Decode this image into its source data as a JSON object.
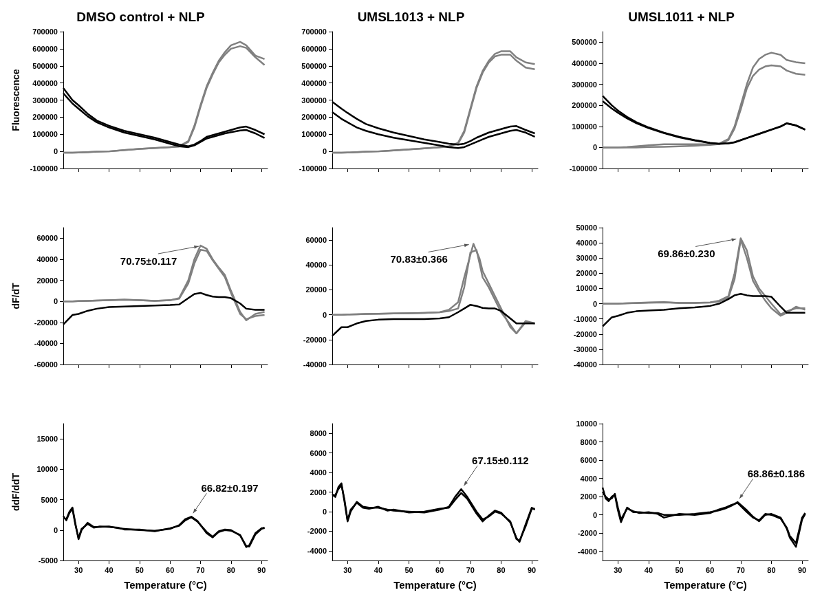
{
  "chart_data": [
    {
      "type": "line",
      "title": "DMSO control + NLP",
      "ylabel": "Fluorescence",
      "xlim": [
        25,
        92
      ],
      "xticks": [
        30,
        40,
        50,
        60,
        70,
        80,
        90
      ],
      "ylim": [
        -100000,
        700000
      ],
      "yticks": [
        -100000,
        0,
        100000,
        200000,
        300000,
        400000,
        500000,
        600000,
        700000
      ],
      "tick_labels": "y",
      "x": [
        25,
        28,
        30,
        33,
        36,
        40,
        45,
        50,
        55,
        60,
        63,
        66,
        68,
        70,
        72,
        74,
        76,
        78,
        80,
        83,
        85,
        88,
        91
      ],
      "series": [
        {
          "color": "#808080",
          "values": [
            -8000,
            -8000,
            -7000,
            -5000,
            -2000,
            0,
            8000,
            15000,
            20000,
            25000,
            30000,
            60000,
            150000,
            270000,
            380000,
            460000,
            530000,
            580000,
            620000,
            640000,
            620000,
            560000,
            540000
          ]
        },
        {
          "color": "#808080",
          "values": [
            -8000,
            -8000,
            -7000,
            -5000,
            -2000,
            0,
            8000,
            15000,
            20000,
            25000,
            28000,
            55000,
            140000,
            260000,
            370000,
            450000,
            520000,
            565000,
            600000,
            615000,
            605000,
            550000,
            505000
          ]
        },
        {
          "color": "#000000",
          "values": [
            370000,
            300000,
            270000,
            220000,
            180000,
            150000,
            120000,
            100000,
            80000,
            55000,
            40000,
            30000,
            40000,
            60000,
            85000,
            95000,
            105000,
            115000,
            125000,
            140000,
            145000,
            125000,
            100000
          ]
        },
        {
          "color": "#000000",
          "values": [
            340000,
            280000,
            250000,
            205000,
            170000,
            140000,
            110000,
            90000,
            70000,
            45000,
            30000,
            25000,
            35000,
            55000,
            75000,
            85000,
            95000,
            105000,
            112000,
            122000,
            125000,
            105000,
            78000
          ]
        }
      ]
    },
    {
      "type": "line",
      "title": "UMSL1013 + NLP",
      "xlim": [
        25,
        92
      ],
      "xticks": [
        30,
        40,
        50,
        60,
        70,
        80,
        90
      ],
      "ylim": [
        -100000,
        700000
      ],
      "yticks": [
        -100000,
        0,
        100000,
        200000,
        300000,
        400000,
        500000,
        600000,
        700000
      ],
      "tick_labels": "y",
      "x": [
        25,
        28,
        30,
        33,
        36,
        40,
        45,
        50,
        55,
        60,
        63,
        66,
        68,
        70,
        72,
        74,
        76,
        78,
        80,
        83,
        85,
        88,
        91
      ],
      "series": [
        {
          "color": "#808080",
          "values": [
            -8000,
            -8000,
            -7000,
            -5000,
            -2000,
            0,
            6000,
            12000,
            18000,
            25000,
            30000,
            50000,
            120000,
            250000,
            380000,
            470000,
            530000,
            570000,
            585000,
            585000,
            550000,
            520000,
            510000
          ]
        },
        {
          "color": "#808080",
          "values": [
            -8000,
            -8000,
            -7000,
            -5000,
            -2000,
            0,
            6000,
            12000,
            18000,
            24000,
            28000,
            45000,
            110000,
            240000,
            370000,
            460000,
            520000,
            555000,
            565000,
            565000,
            530000,
            490000,
            480000
          ]
        },
        {
          "color": "#000000",
          "values": [
            290000,
            250000,
            225000,
            190000,
            160000,
            135000,
            110000,
            90000,
            70000,
            55000,
            45000,
            40000,
            45000,
            60000,
            80000,
            95000,
            110000,
            120000,
            130000,
            145000,
            148000,
            125000,
            105000
          ]
        },
        {
          "color": "#000000",
          "values": [
            230000,
            190000,
            170000,
            140000,
            120000,
            100000,
            80000,
            65000,
            50000,
            35000,
            25000,
            20000,
            25000,
            40000,
            55000,
            70000,
            85000,
            95000,
            105000,
            120000,
            125000,
            110000,
            85000
          ]
        }
      ]
    },
    {
      "type": "line",
      "title": "UMSL1011 + NLP",
      "xlim": [
        25,
        92
      ],
      "xticks": [
        30,
        40,
        50,
        60,
        70,
        80,
        90
      ],
      "ylim": [
        -100000,
        550000
      ],
      "yticks": [
        -100000,
        0,
        100000,
        200000,
        300000,
        400000,
        500000
      ],
      "tick_labels": "y",
      "x": [
        25,
        28,
        30,
        33,
        36,
        40,
        45,
        50,
        55,
        60,
        63,
        66,
        68,
        70,
        72,
        74,
        76,
        78,
        80,
        83,
        85,
        88,
        91
      ],
      "series": [
        {
          "color": "#808080",
          "values": [
            0,
            0,
            0,
            2000,
            5000,
            10000,
            15000,
            15000,
            15000,
            15000,
            18000,
            40000,
            100000,
            200000,
            300000,
            380000,
            420000,
            440000,
            450000,
            440000,
            415000,
            405000,
            400000
          ]
        },
        {
          "color": "#808080",
          "values": [
            0,
            0,
            0,
            0,
            0,
            2000,
            3000,
            5000,
            8000,
            12000,
            16000,
            35000,
            90000,
            180000,
            280000,
            340000,
            370000,
            385000,
            390000,
            385000,
            365000,
            350000,
            345000
          ]
        },
        {
          "color": "#000000",
          "values": [
            245000,
            200000,
            175000,
            145000,
            120000,
            95000,
            70000,
            50000,
            35000,
            22000,
            18000,
            20000,
            25000,
            35000,
            45000,
            55000,
            65000,
            75000,
            85000,
            100000,
            115000,
            105000,
            85000
          ]
        },
        {
          "color": "#000000",
          "values": [
            220000,
            185000,
            165000,
            138000,
            115000,
            92000,
            68000,
            48000,
            33000,
            21000,
            17000,
            19000,
            24000,
            34000,
            44000,
            54000,
            64000,
            74000,
            84000,
            99000,
            114000,
            104000,
            84000
          ]
        }
      ]
    },
    {
      "type": "line",
      "ylabel": "dF/dT",
      "xlim": [
        25,
        92
      ],
      "xticks": [
        30,
        40,
        50,
        60,
        70,
        80,
        90
      ],
      "ylim": [
        -60000,
        70000
      ],
      "yticks": [
        -60000,
        -40000,
        -20000,
        0,
        20000,
        40000,
        60000
      ],
      "tick_labels": "y",
      "annotations": [
        {
          "text": "70.75±0.117",
          "x": 70.75,
          "y": 53000
        }
      ],
      "x": [
        25,
        28,
        30,
        33,
        36,
        40,
        45,
        50,
        55,
        60,
        63,
        66,
        68,
        70,
        72,
        74,
        76,
        78,
        80,
        83,
        85,
        88,
        91
      ],
      "series": [
        {
          "color": "#808080",
          "values": [
            0,
            0,
            200,
            500,
            800,
            1000,
            1500,
            1000,
            500,
            1000,
            3000,
            20000,
            40000,
            53000,
            50000,
            40000,
            32000,
            25000,
            10000,
            -10000,
            -18000,
            -12000,
            -10000
          ]
        },
        {
          "color": "#808080",
          "values": [
            0,
            0,
            200,
            500,
            800,
            1000,
            1500,
            1000,
            500,
            1000,
            2500,
            17000,
            36000,
            49000,
            48000,
            39000,
            31000,
            23000,
            8000,
            -12000,
            -17000,
            -14000,
            -13000
          ]
        },
        {
          "color": "#000000",
          "values": [
            -22000,
            -13000,
            -12000,
            -9000,
            -7000,
            -5500,
            -5000,
            -4500,
            -4000,
            -3500,
            -3000,
            3000,
            7000,
            8000,
            6000,
            4500,
            4000,
            4000,
            3000,
            -2000,
            -7000,
            -8000,
            -8000
          ]
        }
      ]
    },
    {
      "type": "line",
      "xlim": [
        25,
        92
      ],
      "xticks": [
        30,
        40,
        50,
        60,
        70,
        80,
        90
      ],
      "ylim": [
        -40000,
        70000
      ],
      "yticks": [
        -40000,
        -20000,
        0,
        20000,
        40000,
        60000
      ],
      "tick_labels": "y",
      "annotations": [
        {
          "text": "70.83±0.366",
          "x": 70.83,
          "y": 57000
        }
      ],
      "x": [
        25,
        28,
        30,
        33,
        36,
        40,
        45,
        50,
        55,
        60,
        63,
        66,
        68,
        70,
        72,
        74,
        76,
        78,
        80,
        83,
        85,
        88,
        91
      ],
      "series": [
        {
          "color": "#808080",
          "x": [
            25,
            28,
            30,
            33,
            36,
            40,
            45,
            50,
            55,
            60,
            63,
            66,
            68,
            71,
            73,
            74,
            76,
            78,
            80,
            83,
            85,
            88,
            91
          ],
          "values": [
            0,
            0,
            200,
            400,
            600,
            800,
            1000,
            1200,
            1500,
            2000,
            4000,
            10000,
            30000,
            57000,
            45000,
            35000,
            25000,
            15000,
            5000,
            -10000,
            -15000,
            -5000,
            -7000
          ]
        },
        {
          "color": "#808080",
          "values": [
            0,
            0,
            200,
            400,
            600,
            800,
            1000,
            1200,
            1500,
            2000,
            3000,
            5000,
            22000,
            50000,
            52000,
            30000,
            22000,
            12000,
            2000,
            -8000,
            -15000,
            -6000,
            -7000
          ]
        },
        {
          "color": "#000000",
          "values": [
            -17000,
            -10000,
            -10000,
            -7000,
            -5000,
            -4000,
            -3500,
            -3500,
            -3500,
            -3000,
            -2000,
            2000,
            5000,
            8000,
            7000,
            5500,
            5000,
            5000,
            3000,
            -3000,
            -7000,
            -7000,
            -7000
          ]
        }
      ]
    },
    {
      "type": "line",
      "xlim": [
        25,
        92
      ],
      "xticks": [
        30,
        40,
        50,
        60,
        70,
        80,
        90
      ],
      "ylim": [
        -40000,
        50000
      ],
      "yticks": [
        -40000,
        -30000,
        -20000,
        -10000,
        0,
        10000,
        20000,
        30000,
        40000,
        50000
      ],
      "tick_labels": "y",
      "annotations": [
        {
          "text": "69.86±0.230",
          "x": 69.86,
          "y": 43000
        }
      ],
      "x": [
        25,
        28,
        30,
        33,
        36,
        40,
        45,
        50,
        55,
        60,
        63,
        66,
        68,
        70,
        72,
        74,
        76,
        78,
        80,
        83,
        85,
        88,
        91
      ],
      "series": [
        {
          "color": "#808080",
          "values": [
            0,
            0,
            0,
            200,
            500,
            800,
            1000,
            500,
            500,
            800,
            2000,
            5000,
            20000,
            43000,
            35000,
            18000,
            10000,
            5000,
            0,
            -7000,
            -5000,
            -3000,
            -3000
          ]
        },
        {
          "color": "#808080",
          "values": [
            0,
            0,
            0,
            200,
            400,
            600,
            800,
            500,
            500,
            700,
            1500,
            4000,
            16000,
            42000,
            30000,
            15000,
            8000,
            2000,
            -3000,
            -8000,
            -6000,
            -2000,
            -4000
          ]
        },
        {
          "color": "#000000",
          "values": [
            -15000,
            -9000,
            -8000,
            -6000,
            -5000,
            -4500,
            -4000,
            -3000,
            -2500,
            -1500,
            0,
            3000,
            5500,
            6500,
            5500,
            5000,
            5000,
            5000,
            4500,
            -2000,
            -6000,
            -6000,
            -6000
          ]
        }
      ]
    },
    {
      "type": "line",
      "ylabel": "ddF/ddT",
      "xlabel": "Temperature (°C)",
      "xlim": [
        25,
        92
      ],
      "xticks": [
        30,
        40,
        50,
        60,
        70,
        80,
        90
      ],
      "ylim": [
        -5000,
        17500
      ],
      "yticks": [
        -5000,
        0,
        5000,
        10000,
        15000
      ],
      "annotations": [
        {
          "text": "66.82±0.197",
          "x": 66.82,
          "y": 2200
        }
      ],
      "x": [
        25,
        26,
        27,
        28,
        29,
        30,
        31,
        33,
        35,
        37,
        40,
        43,
        45,
        50,
        55,
        60,
        63,
        65,
        67,
        69,
        72,
        74,
        76,
        78,
        80,
        83,
        85,
        86,
        88,
        90,
        91
      ],
      "series": [
        {
          "color": "#000000",
          "values": [
            2000,
            1800,
            3000,
            3700,
            1000,
            -1500,
            0,
            1200,
            500,
            500,
            600,
            300,
            200,
            0,
            -100,
            200,
            800,
            1800,
            2200,
            1500,
            -500,
            -1200,
            -300,
            0,
            -100,
            -800,
            -2800,
            -2500,
            -500,
            300,
            300
          ]
        },
        {
          "color": "#000000",
          "values": [
            2300,
            1600,
            2800,
            3500,
            800,
            -1300,
            200,
            1000,
            400,
            600,
            500,
            400,
            100,
            100,
            -200,
            300,
            700,
            1600,
            2100,
            1400,
            -300,
            -1100,
            -200,
            100,
            0,
            -900,
            -2600,
            -2700,
            -700,
            200,
            400
          ]
        }
      ]
    },
    {
      "type": "line",
      "xlabel": "Temperature (°C)",
      "xlim": [
        25,
        92
      ],
      "xticks": [
        30,
        40,
        50,
        60,
        70,
        80,
        90
      ],
      "ylim": [
        -5000,
        9000
      ],
      "yticks": [
        -4000,
        -2000,
        0,
        2000,
        4000,
        6000,
        8000
      ],
      "annotations": [
        {
          "text": "67.15±0.112",
          "x": 67.15,
          "y": 2300
        }
      ],
      "x": [
        25,
        26,
        27,
        28,
        29,
        30,
        31,
        33,
        35,
        37,
        40,
        43,
        45,
        50,
        55,
        60,
        63,
        65,
        67,
        69,
        72,
        74,
        76,
        78,
        80,
        83,
        85,
        86,
        88,
        90,
        91
      ],
      "series": [
        {
          "color": "#000000",
          "values": [
            1800,
            1500,
            2500,
            2900,
            1000,
            -1000,
            0,
            1000,
            500,
            400,
            400,
            200,
            100,
            0,
            -100,
            200,
            500,
            1500,
            2300,
            1500,
            0,
            -800,
            -500,
            0,
            -200,
            -1000,
            -2800,
            -3000,
            -1500,
            300,
            300
          ]
        },
        {
          "color": "#000000",
          "values": [
            1600,
            1700,
            2300,
            2700,
            1200,
            -900,
            200,
            900,
            400,
            300,
            500,
            100,
            200,
            -100,
            0,
            300,
            400,
            1200,
            1900,
            1300,
            -200,
            -1000,
            -400,
            100,
            -100,
            -1100,
            -2700,
            -3100,
            -1300,
            400,
            200
          ]
        }
      ]
    },
    {
      "type": "line",
      "xlabel": "Temperature (°C)",
      "xlim": [
        25,
        92
      ],
      "xticks": [
        30,
        40,
        50,
        60,
        70,
        80,
        90
      ],
      "ylim": [
        -5000,
        10000
      ],
      "yticks": [
        -4000,
        -2000,
        0,
        2000,
        4000,
        6000,
        8000,
        10000
      ],
      "annotations": [
        {
          "text": "68.86±0.186",
          "x": 68.86,
          "y": 1400
        }
      ],
      "x": [
        25,
        26,
        27,
        28,
        29,
        30,
        31,
        33,
        35,
        37,
        40,
        43,
        45,
        50,
        55,
        60,
        63,
        65,
        67,
        69,
        72,
        74,
        76,
        78,
        80,
        83,
        85,
        86,
        88,
        90,
        91
      ],
      "series": [
        {
          "color": "#000000",
          "values": [
            3000,
            1800,
            1500,
            2000,
            2200,
            500,
            -800,
            800,
            300,
            300,
            200,
            200,
            0,
            0,
            100,
            300,
            500,
            700,
            1000,
            1400,
            500,
            -200,
            -700,
            0,
            100,
            -300,
            -1500,
            -2500,
            -3500,
            -500,
            100
          ]
        },
        {
          "color": "#000000",
          "values": [
            2500,
            2000,
            1700,
            1800,
            2300,
            800,
            -500,
            700,
            400,
            200,
            300,
            100,
            -300,
            100,
            0,
            200,
            600,
            800,
            1100,
            1300,
            300,
            -300,
            -600,
            100,
            0,
            -400,
            -1400,
            -2300,
            -3100,
            -300,
            200
          ]
        }
      ]
    }
  ]
}
